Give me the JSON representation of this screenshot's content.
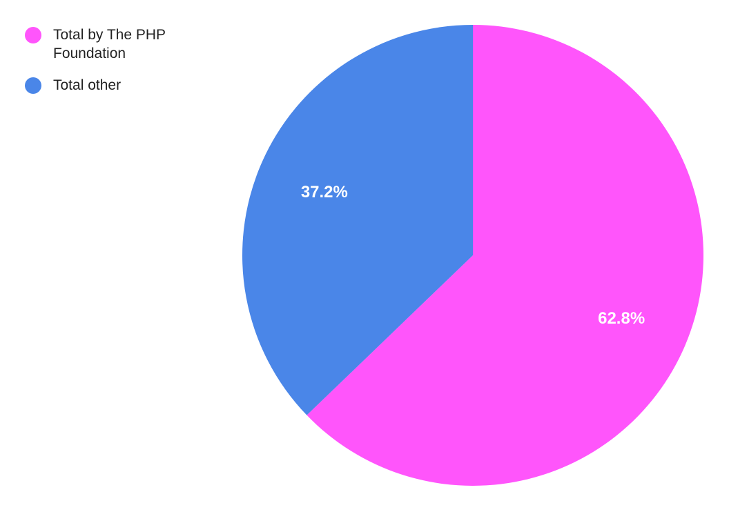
{
  "chart_data": {
    "type": "pie",
    "title": "",
    "slices": [
      {
        "label": "Total by The PHP Foundation",
        "value": 62.8,
        "display": "62.8%",
        "color": "#ff55fb"
      },
      {
        "label": "Total other",
        "value": 37.2,
        "display": "37.2%",
        "color": "#4a86e8"
      }
    ],
    "start_angle": "top",
    "direction": "clockwise",
    "legend_position": "top-left"
  }
}
